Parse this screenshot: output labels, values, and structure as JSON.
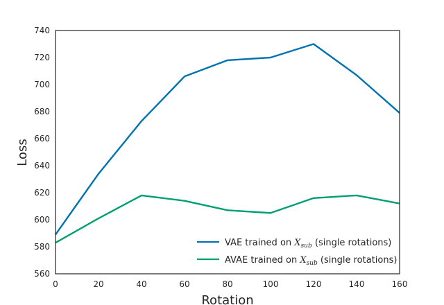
{
  "chart_data": {
    "type": "line",
    "title": "",
    "xlabel": "Rotation",
    "ylabel": "Loss",
    "xlim": [
      0,
      160
    ],
    "ylim": [
      560,
      740
    ],
    "xticks": [
      0,
      20,
      40,
      60,
      80,
      100,
      120,
      140,
      160
    ],
    "yticks": [
      560,
      580,
      600,
      620,
      640,
      660,
      680,
      700,
      720,
      740
    ],
    "x": [
      0,
      20,
      40,
      60,
      80,
      100,
      120,
      140,
      160
    ],
    "grid": false,
    "legend_position": "lower-right",
    "series": [
      {
        "name_parts": [
          "VAE trained on ",
          "X",
          "sub",
          " (single rotations)"
        ],
        "color": "#0072b2",
        "values": [
          589,
          634,
          673,
          706,
          718,
          720,
          730,
          707,
          679
        ]
      },
      {
        "name_parts": [
          "AVAE trained on ",
          "X",
          "sub",
          " (single rotations)"
        ],
        "color": "#009e73",
        "values": [
          583,
          601,
          618,
          614,
          607,
          605,
          616,
          618,
          612
        ]
      }
    ]
  }
}
